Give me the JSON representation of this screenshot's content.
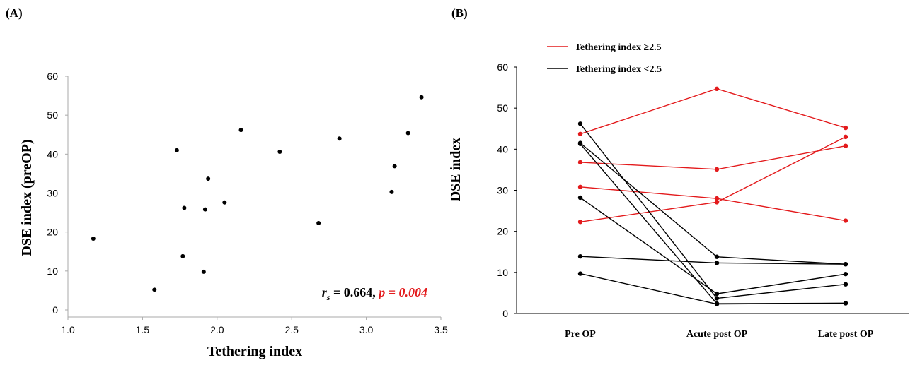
{
  "colors": {
    "high": "#e31a1c",
    "low": "#000000"
  },
  "chart_data": [
    {
      "panel": "(A)",
      "type": "scatter",
      "xlabel": "Tethering index",
      "ylabel": "DSE index (preOP)",
      "xlim": [
        1.0,
        3.5
      ],
      "ylim": [
        0,
        60
      ],
      "xticks": [
        "1.0",
        "1.5",
        "2.0",
        "2.5",
        "3.0",
        "3.5"
      ],
      "yticks": [
        "0",
        "10",
        "20",
        "30",
        "40",
        "50",
        "60"
      ],
      "points": [
        {
          "x": 1.17,
          "y": 18.3
        },
        {
          "x": 1.58,
          "y": 5.2
        },
        {
          "x": 1.73,
          "y": 41.0
        },
        {
          "x": 1.77,
          "y": 13.8
        },
        {
          "x": 1.78,
          "y": 26.2
        },
        {
          "x": 1.91,
          "y": 9.8
        },
        {
          "x": 1.92,
          "y": 25.8
        },
        {
          "x": 1.94,
          "y": 33.7
        },
        {
          "x": 2.05,
          "y": 27.6
        },
        {
          "x": 2.16,
          "y": 46.2
        },
        {
          "x": 2.42,
          "y": 40.6
        },
        {
          "x": 2.68,
          "y": 22.3
        },
        {
          "x": 2.82,
          "y": 44.0
        },
        {
          "x": 3.17,
          "y": 30.3
        },
        {
          "x": 3.19,
          "y": 36.9
        },
        {
          "x": 3.28,
          "y": 45.4
        },
        {
          "x": 3.37,
          "y": 54.6
        }
      ],
      "annotation": {
        "rs_symbol": "r",
        "rs_subscript": "s",
        "rs_value": " = 0.664, ",
        "p_text": "p = 0.004"
      }
    },
    {
      "panel": "(B)",
      "type": "line",
      "ylabel": "DSE index",
      "ylim": [
        0,
        60
      ],
      "yticks": [
        "0",
        "10",
        "20",
        "30",
        "40",
        "50",
        "60"
      ],
      "categories": [
        "Pre OP",
        "Acute post OP",
        "Late post OP"
      ],
      "legend": {
        "high_label": "Tethering index ≥2.5",
        "low_label": "Tethering index <2.5",
        "position": "top-left"
      },
      "series": [
        {
          "group": "high",
          "values": [
            43.7,
            54.7,
            45.2
          ]
        },
        {
          "group": "high",
          "values": [
            36.8,
            35.1,
            40.8
          ]
        },
        {
          "group": "high",
          "values": [
            30.8,
            28.0,
            22.6
          ]
        },
        {
          "group": "high",
          "values": [
            22.3,
            27.1,
            43.0
          ]
        },
        {
          "group": "low",
          "values": [
            46.2,
            3.7,
            7.1
          ]
        },
        {
          "group": "low",
          "values": [
            41.5,
            13.8,
            12.0
          ]
        },
        {
          "group": "low",
          "values": [
            41.3,
            2.4,
            2.5
          ]
        },
        {
          "group": "low",
          "values": [
            28.2,
            4.8,
            9.6
          ]
        },
        {
          "group": "low",
          "values": [
            13.9,
            12.3,
            12.0
          ]
        },
        {
          "group": "low",
          "values": [
            9.7,
            2.3,
            2.5
          ]
        }
      ]
    }
  ]
}
